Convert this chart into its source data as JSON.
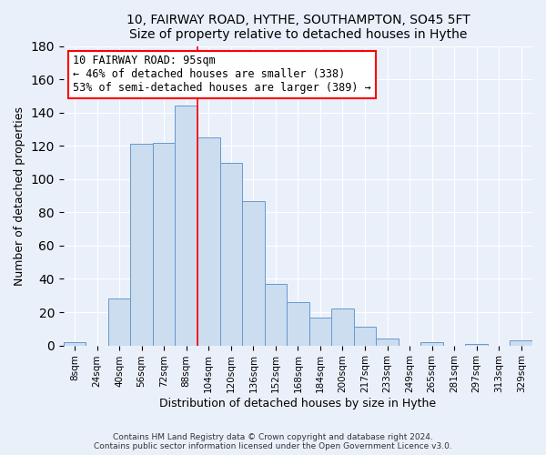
{
  "title": "10, FAIRWAY ROAD, HYTHE, SOUTHAMPTON, SO45 5FT",
  "subtitle": "Size of property relative to detached houses in Hythe",
  "xlabel": "Distribution of detached houses by size in Hythe",
  "ylabel": "Number of detached properties",
  "bin_labels": [
    "8sqm",
    "24sqm",
    "40sqm",
    "56sqm",
    "72sqm",
    "88sqm",
    "104sqm",
    "120sqm",
    "136sqm",
    "152sqm",
    "168sqm",
    "184sqm",
    "200sqm",
    "217sqm",
    "233sqm",
    "249sqm",
    "265sqm",
    "281sqm",
    "297sqm",
    "313sqm",
    "329sqm"
  ],
  "bar_values": [
    2,
    0,
    28,
    121,
    122,
    144,
    125,
    110,
    87,
    37,
    26,
    17,
    22,
    11,
    4,
    0,
    2,
    0,
    1,
    0,
    3
  ],
  "bar_color": "#ccddf0",
  "bar_edge_color": "#6699cc",
  "vline_x": 5.5,
  "vline_color": "red",
  "annotation_title": "10 FAIRWAY ROAD: 95sqm",
  "annotation_line1": "← 46% of detached houses are smaller (338)",
  "annotation_line2": "53% of semi-detached houses are larger (389) →",
  "annotation_box_color": "white",
  "annotation_box_edge_color": "red",
  "ylim": [
    0,
    180
  ],
  "yticks": [
    0,
    20,
    40,
    60,
    80,
    100,
    120,
    140,
    160,
    180
  ],
  "footer1": "Contains HM Land Registry data © Crown copyright and database right 2024.",
  "footer2": "Contains public sector information licensed under the Open Government Licence v3.0.",
  "bg_color": "#eaf0fa",
  "plot_bg_color": "#eaf0fa"
}
